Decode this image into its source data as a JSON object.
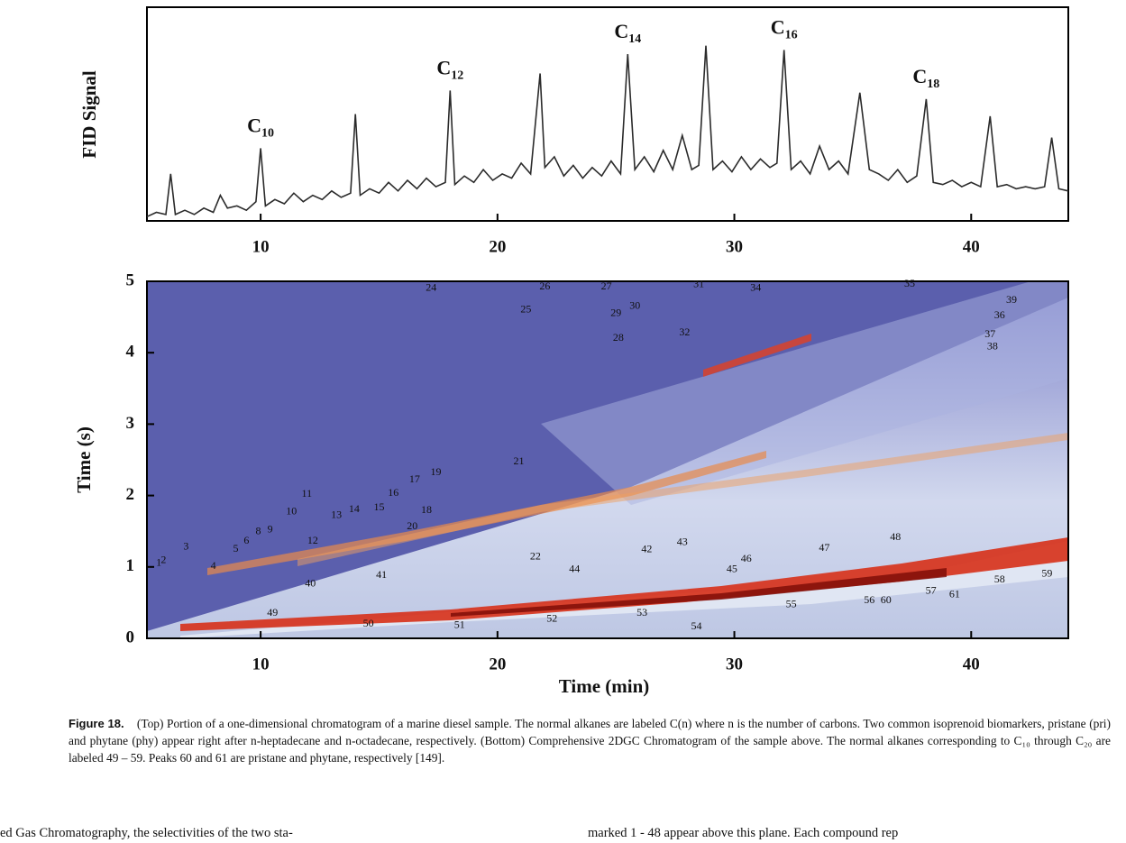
{
  "chart_data": [
    {
      "type": "line",
      "ylabel": "FID Signal",
      "color": "#2b2b2b",
      "xlim": [
        5.2,
        44.1
      ],
      "ylim": [
        0,
        100
      ],
      "xticks": [
        10,
        20,
        30,
        40
      ],
      "x": [
        5.2,
        5.6,
        6.0,
        6.2,
        6.4,
        6.8,
        7.2,
        7.6,
        8.0,
        8.3,
        8.6,
        9.0,
        9.4,
        9.8,
        10.0,
        10.2,
        10.6,
        11.0,
        11.4,
        11.8,
        12.2,
        12.6,
        13.0,
        13.4,
        13.8,
        14.0,
        14.2,
        14.6,
        15.0,
        15.4,
        15.8,
        16.2,
        16.6,
        17.0,
        17.4,
        17.8,
        18.0,
        18.2,
        18.6,
        19.0,
        19.4,
        19.8,
        20.2,
        20.6,
        21.0,
        21.4,
        21.8,
        22.0,
        22.4,
        22.8,
        23.2,
        23.6,
        24.0,
        24.4,
        24.8,
        25.2,
        25.5,
        25.8,
        26.2,
        26.6,
        27.0,
        27.4,
        27.8,
        28.2,
        28.5,
        28.8,
        29.1,
        29.5,
        29.9,
        30.3,
        30.7,
        31.1,
        31.5,
        31.8,
        32.1,
        32.4,
        32.8,
        33.2,
        33.6,
        34.0,
        34.4,
        34.8,
        35.3,
        35.7,
        36.1,
        36.5,
        36.9,
        37.3,
        37.7,
        38.1,
        38.4,
        38.8,
        39.2,
        39.6,
        40.0,
        40.4,
        40.8,
        41.1,
        41.5,
        41.9,
        42.3,
        42.7,
        43.1,
        43.4,
        43.7,
        44.1
      ],
      "values": [
        2,
        4,
        3,
        22,
        3,
        5,
        3,
        6,
        4,
        12,
        6,
        7,
        5,
        9,
        34,
        7,
        10,
        8,
        13,
        9,
        12,
        10,
        14,
        11,
        13,
        50,
        12,
        15,
        13,
        18,
        14,
        19,
        15,
        20,
        16,
        18,
        61,
        17,
        21,
        18,
        24,
        19,
        22,
        20,
        27,
        22,
        69,
        25,
        30,
        21,
        26,
        20,
        25,
        21,
        28,
        22,
        78,
        24,
        30,
        23,
        33,
        24,
        40,
        24,
        26,
        82,
        24,
        28,
        23,
        30,
        24,
        29,
        25,
        27,
        80,
        24,
        28,
        22,
        35,
        24,
        28,
        22,
        60,
        24,
        22,
        19,
        24,
        18,
        21,
        57,
        18,
        17,
        19,
        16,
        18,
        16,
        49,
        16,
        17,
        15,
        16,
        15,
        16,
        39,
        15,
        14
      ],
      "annotations": [
        {
          "text": "C10",
          "x": 10.0
        },
        {
          "text": "C12",
          "x": 18.0
        },
        {
          "text": "C14",
          "x": 25.5
        },
        {
          "text": "C16",
          "x": 32.1
        },
        {
          "text": "C18",
          "x": 38.1
        }
      ]
    },
    {
      "type": "heatmap",
      "xlabel": "Time (min)",
      "ylabel": "Time (s)",
      "xlim": [
        5.2,
        44.1
      ],
      "ylim": [
        0,
        5
      ],
      "xticks": [
        10,
        20,
        30,
        40
      ],
      "yticks": [
        0,
        1,
        2,
        3,
        4,
        5
      ],
      "peaks": {
        "labels": [
          "1",
          "2",
          "3",
          "4",
          "5",
          "6",
          "8",
          "9",
          "10",
          "11",
          "12",
          "13",
          "14",
          "15",
          "16",
          "17",
          "18",
          "19",
          "20",
          "21",
          "22",
          "24",
          "25",
          "26",
          "27",
          "28",
          "29",
          "30",
          "31",
          "32",
          "34",
          "35",
          "36",
          "37",
          "38",
          "39",
          "40",
          "41",
          "42",
          "43",
          "44",
          "45",
          "46",
          "47",
          "48",
          "49",
          "50",
          "51",
          "52",
          "53",
          "54",
          "55",
          "56",
          "57",
          "58",
          "59",
          "60",
          "61"
        ],
        "x": [
          5.7,
          5.9,
          6.85,
          8.0,
          8.95,
          9.4,
          9.9,
          10.4,
          11.3,
          11.95,
          12.2,
          13.2,
          13.95,
          15.0,
          15.6,
          16.5,
          17.0,
          17.4,
          16.4,
          20.9,
          21.6,
          17.2,
          21.2,
          22.0,
          24.6,
          25.1,
          25.0,
          25.8,
          28.5,
          27.9,
          30.9,
          37.4,
          41.2,
          40.8,
          40.9,
          41.7,
          12.1,
          15.1,
          26.3,
          27.8,
          23.25,
          29.9,
          30.5,
          33.8,
          36.8,
          10.5,
          14.55,
          18.4,
          22.3,
          26.1,
          28.4,
          32.4,
          35.7,
          38.3,
          41.2,
          43.2,
          36.4,
          39.3
        ],
        "y": [
          1.05,
          1.09,
          1.28,
          1.01,
          1.25,
          1.36,
          1.49,
          1.52,
          1.77,
          2.02,
          1.36,
          1.72,
          1.8,
          1.83,
          2.03,
          2.22,
          1.79,
          2.32,
          1.56,
          2.47,
          1.14,
          4.9,
          4.6,
          4.92,
          4.92,
          4.2,
          4.55,
          4.65,
          4.95,
          4.28,
          4.9,
          4.96,
          4.52,
          4.25,
          4.08,
          4.73,
          0.76,
          0.88,
          1.24,
          1.34,
          0.96,
          0.96,
          1.11,
          1.26,
          1.41,
          0.35,
          0.2,
          0.18,
          0.27,
          0.35,
          0.16,
          0.47,
          0.53,
          0.66,
          0.82,
          0.9,
          0.53,
          0.61
        ]
      }
    }
  ],
  "caption": {
    "label": "Figure 18.",
    "text": "(Top) Portion of a one-dimensional chromatogram of a marine diesel sample. The normal alkanes are labeled C(n) where n is the number of carbons. Two common isoprenoid biomarkers, pristane (pri) and phytane (phy) appear right after n-heptadecane and n-octadecane, respectively. (Bottom) Comprehensive 2DGC Chromatogram of the sample above. The normal alkanes corresponding to C₁₀ through C₂₀ are labeled 49 – 59. Peaks 60 and 61 are pristane and phytane, respectively [149]."
  },
  "body_text": [
    "ed Gas Chromatography, the selectivities of the two sta-",
    "marked 1 - 48 appear above this plane. Each compound rep"
  ]
}
